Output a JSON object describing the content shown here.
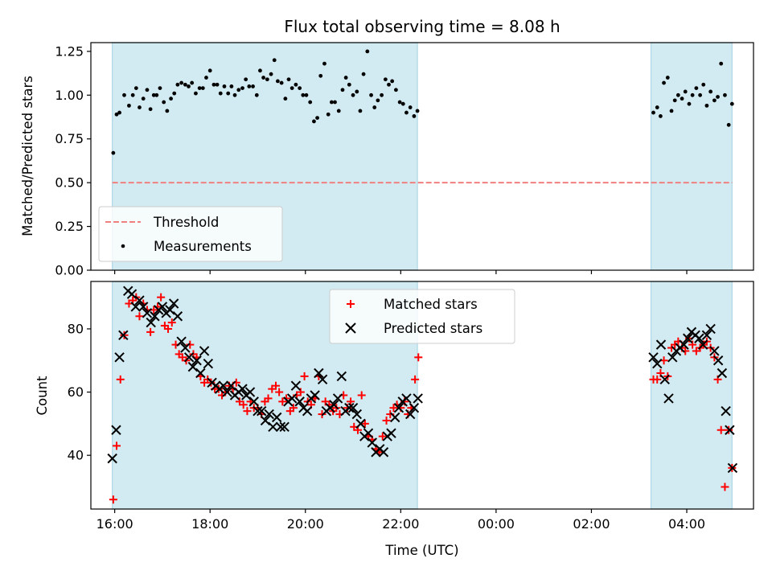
{
  "chart_data": [
    {
      "type": "scatter",
      "title": "Flux total observing time = 8.08 h",
      "xlabel": "",
      "ylabel": "Matched/Predicted stars",
      "xlim": [
        15.5,
        29.4
      ],
      "ylim": [
        0,
        1.3
      ],
      "yticks": [
        0,
        0.25,
        0.5,
        0.75,
        1.0,
        1.25
      ],
      "ytick_labels": [
        "0.00",
        "0.25",
        "0.50",
        "0.75",
        "1.00",
        "1.25"
      ],
      "xticks": [
        16,
        18,
        20,
        22,
        24,
        26,
        28
      ],
      "xtick_labels": [
        "",
        "",
        "",
        "",
        "",
        "",
        ""
      ],
      "shaded_intervals": [
        [
          15.95,
          22.35
        ],
        [
          27.25,
          28.95
        ]
      ],
      "shade_color": "#add8e6",
      "threshold": {
        "name": "Threshold",
        "value": 0.5,
        "color": "#f08080",
        "style": "dashed"
      },
      "legend_placement": "lower-left",
      "legend": [
        "Threshold",
        "Measurements"
      ],
      "series": [
        {
          "name": "Measurements",
          "marker": "dot",
          "color": "#000000",
          "x": [
            15.97,
            16.04,
            16.1,
            16.2,
            16.3,
            16.38,
            16.45,
            16.52,
            16.6,
            16.68,
            16.75,
            16.82,
            16.88,
            16.95,
            17.03,
            17.1,
            17.18,
            17.25,
            17.32,
            17.4,
            17.48,
            17.55,
            17.62,
            17.7,
            17.78,
            17.85,
            17.92,
            18.0,
            18.08,
            18.15,
            18.22,
            18.3,
            18.38,
            18.45,
            18.52,
            18.6,
            18.68,
            18.75,
            18.82,
            18.9,
            18.98,
            19.05,
            19.12,
            19.2,
            19.28,
            19.35,
            19.42,
            19.5,
            19.58,
            19.65,
            19.72,
            19.8,
            19.88,
            19.95,
            20.02,
            20.1,
            20.18,
            20.25,
            20.32,
            20.4,
            20.48,
            20.55,
            20.62,
            20.7,
            20.78,
            20.85,
            20.92,
            21.0,
            21.08,
            21.15,
            21.22,
            21.3,
            21.38,
            21.45,
            21.52,
            21.6,
            21.68,
            21.75,
            21.82,
            21.9,
            21.98,
            22.05,
            22.12,
            22.2,
            22.28,
            22.35,
            27.3,
            27.38,
            27.45,
            27.52,
            27.6,
            27.68,
            27.75,
            27.82,
            27.9,
            27.97,
            28.05,
            28.12,
            28.2,
            28.28,
            28.35,
            28.42,
            28.5,
            28.58,
            28.65,
            28.72,
            28.8,
            28.88,
            28.95
          ],
          "y": [
            0.67,
            0.89,
            0.9,
            1.0,
            0.94,
            1.0,
            1.04,
            0.93,
            0.98,
            1.03,
            0.92,
            1.0,
            1.0,
            1.04,
            0.96,
            0.91,
            0.98,
            1.01,
            1.06,
            1.07,
            1.06,
            1.05,
            1.07,
            1.01,
            1.04,
            1.04,
            1.1,
            1.14,
            1.06,
            1.06,
            1.01,
            1.05,
            1.01,
            1.05,
            1.0,
            1.03,
            1.04,
            1.09,
            1.05,
            1.05,
            1.0,
            1.14,
            1.1,
            1.09,
            1.12,
            1.2,
            1.08,
            1.07,
            0.98,
            1.09,
            1.04,
            1.06,
            1.04,
            1.0,
            1.0,
            0.96,
            0.85,
            0.87,
            1.11,
            1.18,
            0.89,
            0.96,
            0.96,
            0.91,
            1.03,
            1.1,
            1.06,
            1.0,
            1.02,
            0.91,
            1.12,
            1.25,
            1.0,
            0.93,
            0.97,
            1.0,
            1.09,
            1.06,
            1.08,
            1.03,
            0.96,
            0.95,
            0.9,
            0.93,
            0.88,
            0.91,
            0.9,
            0.93,
            0.88,
            1.07,
            1.1,
            0.91,
            0.97,
            1.0,
            0.98,
            1.02,
            0.95,
            1.0,
            1.04,
            1.0,
            1.06,
            0.94,
            1.02,
            0.97,
            0.99,
            1.18,
            1.0,
            0.83,
            0.95
          ],
          "x_note_removed": true
        }
      ]
    },
    {
      "type": "scatter",
      "title": "",
      "xlabel": "Time (UTC)",
      "ylabel": "Count",
      "xlim": [
        15.5,
        29.4
      ],
      "ylim": [
        23,
        95
      ],
      "yticks": [
        40,
        60,
        80
      ],
      "ytick_labels": [
        "40",
        "60",
        "80"
      ],
      "xticks": [
        16,
        18,
        20,
        22,
        24,
        26,
        28
      ],
      "xtick_labels": [
        "16:00",
        "18:00",
        "20:00",
        "22:00",
        "00:00",
        "02:00",
        "04:00"
      ],
      "shaded_intervals": [
        [
          15.95,
          22.35
        ],
        [
          27.25,
          28.95
        ]
      ],
      "shade_color": "#add8e6",
      "legend_placement": "upper-center",
      "legend": [
        "Matched stars",
        "Predicted stars"
      ],
      "series": [
        {
          "name": "Matched stars",
          "marker": "plus",
          "color": "#ff0000",
          "x": [
            15.97,
            16.04,
            16.12,
            16.2,
            16.3,
            16.38,
            16.45,
            16.52,
            16.6,
            16.68,
            16.75,
            16.82,
            16.9,
            16.97,
            17.05,
            17.12,
            17.2,
            17.28,
            17.35,
            17.42,
            17.5,
            17.58,
            17.65,
            17.72,
            17.8,
            17.88,
            17.95,
            18.02,
            18.1,
            18.18,
            18.25,
            18.32,
            18.4,
            18.48,
            18.55,
            18.62,
            18.7,
            18.78,
            18.85,
            18.92,
            19.0,
            19.08,
            19.15,
            19.22,
            19.3,
            19.38,
            19.45,
            19.52,
            19.6,
            19.68,
            19.75,
            19.82,
            19.9,
            19.98,
            20.05,
            20.12,
            20.2,
            20.28,
            20.35,
            20.42,
            20.5,
            20.58,
            20.65,
            20.72,
            20.8,
            20.88,
            20.95,
            21.02,
            21.1,
            21.18,
            21.25,
            21.32,
            21.4,
            21.48,
            21.55,
            21.62,
            21.7,
            21.78,
            21.85,
            21.92,
            22.0,
            22.08,
            22.15,
            22.22,
            22.3,
            22.37,
            27.3,
            27.38,
            27.45,
            27.52,
            27.6,
            27.68,
            27.75,
            27.82,
            27.9,
            27.97,
            28.05,
            28.12,
            28.2,
            28.28,
            28.35,
            28.42,
            28.5,
            28.58,
            28.65,
            28.72,
            28.8,
            28.88,
            28.95
          ],
          "y": [
            26,
            43,
            64,
            78,
            88,
            89,
            90,
            84,
            88,
            86,
            79,
            86,
            87,
            90,
            81,
            80,
            82,
            75,
            72,
            71,
            70,
            75,
            72,
            71,
            65,
            63,
            64,
            63,
            61,
            61,
            59,
            60,
            62,
            61,
            63,
            57,
            56,
            54,
            57,
            55,
            55,
            53,
            57,
            58,
            61,
            62,
            60,
            57,
            58,
            54,
            55,
            59,
            60,
            65,
            57,
            56,
            58,
            65,
            53,
            57,
            56,
            54,
            55,
            53,
            59,
            55,
            57,
            49,
            48,
            59,
            50,
            46,
            45,
            42,
            41,
            46,
            51,
            53,
            55,
            56,
            55,
            57,
            53,
            55,
            64,
            71,
            64,
            64,
            66,
            70,
            65,
            74,
            75,
            76,
            74,
            73,
            77,
            75,
            73,
            74,
            75,
            76,
            74,
            71,
            64,
            48,
            30,
            48,
            36
          ],
          "x_note_removed": true
        },
        {
          "name": "Predicted stars",
          "marker": "x",
          "color": "#000000",
          "x": [
            15.95,
            16.03,
            16.1,
            16.18,
            16.28,
            16.36,
            16.44,
            16.52,
            16.6,
            16.68,
            16.76,
            16.84,
            16.92,
            17.0,
            17.08,
            17.16,
            17.24,
            17.32,
            17.4,
            17.48,
            17.56,
            17.64,
            17.72,
            17.8,
            17.88,
            17.96,
            18.04,
            18.12,
            18.2,
            18.28,
            18.36,
            18.44,
            18.52,
            18.6,
            18.68,
            18.76,
            18.84,
            18.92,
            19.0,
            19.08,
            19.16,
            19.24,
            19.32,
            19.4,
            19.48,
            19.56,
            19.64,
            19.72,
            19.8,
            19.88,
            19.96,
            20.04,
            20.12,
            20.2,
            20.28,
            20.36,
            20.44,
            20.52,
            20.6,
            20.68,
            20.76,
            20.84,
            20.92,
            21.0,
            21.08,
            21.16,
            21.24,
            21.32,
            21.4,
            21.48,
            21.56,
            21.64,
            21.72,
            21.8,
            21.88,
            21.96,
            22.04,
            22.12,
            22.2,
            22.28,
            22.36,
            27.3,
            27.38,
            27.46,
            27.54,
            27.62,
            27.7,
            27.78,
            27.86,
            27.94,
            28.02,
            28.1,
            28.18,
            28.26,
            28.34,
            28.42,
            28.5,
            28.58,
            28.66,
            28.74,
            28.82,
            28.9,
            28.96
          ],
          "y": [
            39,
            48,
            71,
            78,
            92,
            91,
            87,
            89,
            87,
            85,
            82,
            84,
            86,
            87,
            85,
            86,
            88,
            84,
            76,
            74,
            71,
            68,
            70,
            66,
            73,
            69,
            63,
            62,
            61,
            62,
            60,
            62,
            59,
            60,
            61,
            59,
            60,
            57,
            54,
            54,
            51,
            53,
            49,
            52,
            49,
            49,
            57,
            58,
            62,
            57,
            55,
            54,
            58,
            59,
            66,
            64,
            54,
            55,
            56,
            58,
            65,
            54,
            55,
            55,
            53,
            50,
            46,
            47,
            44,
            41,
            42,
            41,
            46,
            47,
            52,
            55,
            57,
            58,
            53,
            55,
            58,
            71,
            69,
            75,
            64,
            58,
            71,
            73,
            74,
            75,
            77,
            79,
            78,
            77,
            75,
            78,
            80,
            73,
            70,
            66,
            54,
            48,
            36
          ],
          "x_note_removed": true
        }
      ]
    }
  ]
}
